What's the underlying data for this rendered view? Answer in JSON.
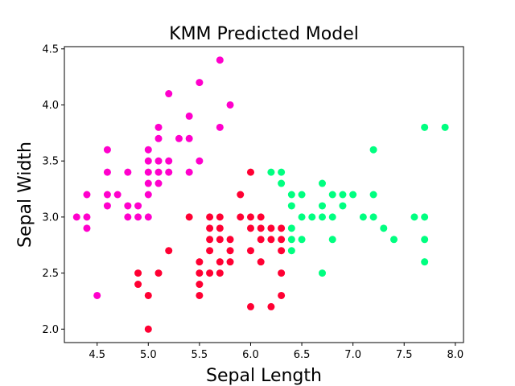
{
  "chart_data": {
    "type": "scatter",
    "title": "KMM Predicted Model",
    "xlabel": "Sepal Length",
    "ylabel": "Sepal Width",
    "xlim": [
      4.18,
      8.08
    ],
    "ylim": [
      1.88,
      4.52
    ],
    "xticks": [
      "4.5",
      "5.0",
      "5.5",
      "6.0",
      "6.5",
      "7.0",
      "7.5",
      "8.0"
    ],
    "yticks": [
      "2.0",
      "2.5",
      "3.0",
      "3.5",
      "4.0",
      "4.5"
    ],
    "grid": false,
    "legend": "none",
    "series": [
      {
        "color": "#ff00cc",
        "points": [
          [
            4.3,
            3.0
          ],
          [
            4.4,
            2.9
          ],
          [
            4.4,
            3.0
          ],
          [
            4.4,
            3.2
          ],
          [
            4.5,
            2.3
          ],
          [
            4.6,
            3.1
          ],
          [
            4.6,
            3.2
          ],
          [
            4.6,
            3.4
          ],
          [
            4.6,
            3.6
          ],
          [
            4.7,
            3.2
          ],
          [
            4.8,
            3.0
          ],
          [
            4.8,
            3.1
          ],
          [
            4.8,
            3.4
          ],
          [
            4.9,
            3.0
          ],
          [
            4.9,
            3.1
          ],
          [
            5.0,
            3.0
          ],
          [
            5.0,
            3.2
          ],
          [
            5.0,
            3.3
          ],
          [
            5.0,
            3.4
          ],
          [
            5.0,
            3.5
          ],
          [
            5.0,
            3.6
          ],
          [
            5.1,
            3.3
          ],
          [
            5.1,
            3.4
          ],
          [
            5.1,
            3.5
          ],
          [
            5.1,
            3.7
          ],
          [
            5.1,
            3.8
          ],
          [
            5.2,
            3.4
          ],
          [
            5.2,
            3.5
          ],
          [
            5.2,
            4.1
          ],
          [
            5.3,
            3.7
          ],
          [
            5.4,
            3.4
          ],
          [
            5.4,
            3.7
          ],
          [
            5.4,
            3.9
          ],
          [
            5.5,
            3.5
          ],
          [
            5.5,
            4.2
          ],
          [
            5.7,
            3.8
          ],
          [
            5.7,
            4.4
          ],
          [
            5.8,
            4.0
          ]
        ]
      },
      {
        "color": "#ff0033",
        "points": [
          [
            4.9,
            2.4
          ],
          [
            4.9,
            2.5
          ],
          [
            5.0,
            2.0
          ],
          [
            5.0,
            2.3
          ],
          [
            5.1,
            2.5
          ],
          [
            5.2,
            2.7
          ],
          [
            5.4,
            3.0
          ],
          [
            5.5,
            2.3
          ],
          [
            5.5,
            2.4
          ],
          [
            5.5,
            2.5
          ],
          [
            5.5,
            2.6
          ],
          [
            5.6,
            2.5
          ],
          [
            5.6,
            2.7
          ],
          [
            5.6,
            2.8
          ],
          [
            5.6,
            2.9
          ],
          [
            5.6,
            3.0
          ],
          [
            5.7,
            2.5
          ],
          [
            5.7,
            2.6
          ],
          [
            5.7,
            2.8
          ],
          [
            5.7,
            2.9
          ],
          [
            5.7,
            3.0
          ],
          [
            5.8,
            2.6
          ],
          [
            5.8,
            2.7
          ],
          [
            5.8,
            2.8
          ],
          [
            5.9,
            3.0
          ],
          [
            5.9,
            3.2
          ],
          [
            6.0,
            2.2
          ],
          [
            6.0,
            2.7
          ],
          [
            6.0,
            2.9
          ],
          [
            6.0,
            3.0
          ],
          [
            6.0,
            3.4
          ],
          [
            6.1,
            2.6
          ],
          [
            6.1,
            2.8
          ],
          [
            6.1,
            2.9
          ],
          [
            6.1,
            3.0
          ],
          [
            6.2,
            2.2
          ],
          [
            6.2,
            2.8
          ],
          [
            6.2,
            2.9
          ],
          [
            6.3,
            2.3
          ],
          [
            6.3,
            2.5
          ],
          [
            6.3,
            2.7
          ],
          [
            6.3,
            2.8
          ],
          [
            6.3,
            2.9
          ]
        ]
      },
      {
        "color": "#00ff80",
        "points": [
          [
            6.2,
            3.4
          ],
          [
            6.3,
            3.3
          ],
          [
            6.3,
            3.4
          ],
          [
            6.4,
            2.7
          ],
          [
            6.4,
            2.8
          ],
          [
            6.4,
            2.9
          ],
          [
            6.4,
            3.1
          ],
          [
            6.4,
            3.2
          ],
          [
            6.5,
            2.8
          ],
          [
            6.5,
            3.0
          ],
          [
            6.5,
            3.2
          ],
          [
            6.6,
            3.0
          ],
          [
            6.7,
            2.5
          ],
          [
            6.7,
            3.0
          ],
          [
            6.7,
            3.1
          ],
          [
            6.7,
            3.3
          ],
          [
            6.8,
            2.8
          ],
          [
            6.8,
            3.0
          ],
          [
            6.8,
            3.2
          ],
          [
            6.9,
            3.1
          ],
          [
            6.9,
            3.2
          ],
          [
            7.0,
            3.2
          ],
          [
            7.1,
            3.0
          ],
          [
            7.2,
            3.0
          ],
          [
            7.2,
            3.2
          ],
          [
            7.2,
            3.6
          ],
          [
            7.3,
            2.9
          ],
          [
            7.4,
            2.8
          ],
          [
            7.6,
            3.0
          ],
          [
            7.7,
            2.6
          ],
          [
            7.7,
            2.8
          ],
          [
            7.7,
            3.0
          ],
          [
            7.7,
            3.8
          ],
          [
            7.9,
            3.8
          ]
        ]
      }
    ]
  }
}
